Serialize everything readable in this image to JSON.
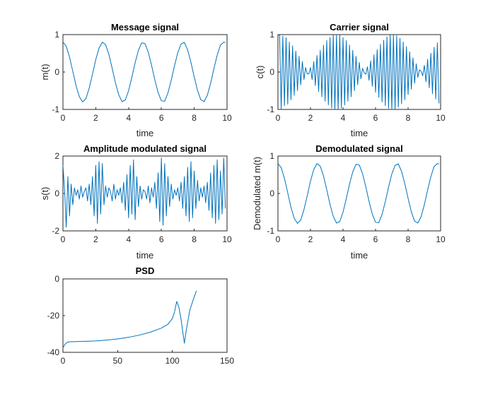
{
  "colors": {
    "series": "#0072bd",
    "axes": "#262626"
  },
  "chart_data": [
    {
      "id": "message",
      "type": "line",
      "title": "Message signal",
      "xlabel": "time",
      "ylabel": "m(t)",
      "xlim": [
        0,
        10
      ],
      "ylim": [
        -1,
        1
      ],
      "xticks": [
        0,
        2,
        4,
        6,
        8,
        10
      ],
      "yticks": [
        -1,
        0,
        1
      ],
      "grid": false,
      "series": [
        {
          "x": [
            0,
            0.2,
            0.4,
            0.6,
            0.8,
            1.0,
            1.2,
            1.4,
            1.6,
            1.8,
            2.0,
            2.2,
            2.4,
            2.6,
            2.8,
            3.0,
            3.2,
            3.4,
            3.6,
            3.8,
            4.0,
            4.2,
            4.4,
            4.6,
            4.8,
            5.0,
            5.2,
            5.4,
            5.6,
            5.8,
            6.0,
            6.2,
            6.4,
            6.6,
            6.8,
            7.0,
            7.2,
            7.4,
            7.6,
            7.8,
            8.0,
            8.2,
            8.4,
            8.6,
            8.8,
            9.0,
            9.2,
            9.4,
            9.6,
            9.8,
            9.9
          ],
          "y": [
            0.8,
            0.69,
            0.4,
            0.02,
            -0.37,
            -0.66,
            -0.8,
            -0.71,
            -0.43,
            -0.06,
            0.33,
            0.64,
            0.8,
            0.73,
            0.47,
            0.1,
            -0.29,
            -0.61,
            -0.79,
            -0.75,
            -0.5,
            -0.14,
            0.25,
            0.58,
            0.78,
            0.76,
            0.53,
            0.18,
            -0.21,
            -0.55,
            -0.77,
            -0.78,
            -0.56,
            -0.22,
            0.17,
            0.52,
            0.75,
            0.79,
            0.59,
            0.26,
            -0.13,
            -0.49,
            -0.74,
            -0.79,
            -0.62,
            -0.3,
            0.09,
            0.45,
            0.72,
            0.8,
            0.79
          ]
        }
      ]
    },
    {
      "id": "carrier",
      "type": "line",
      "title": "Carrier signal",
      "xlabel": "time",
      "ylabel": "c(t)",
      "xlim": [
        0,
        10
      ],
      "ylim": [
        -1,
        1
      ],
      "xticks": [
        0,
        2,
        4,
        6,
        8,
        10
      ],
      "yticks": [
        -1,
        0,
        1
      ],
      "grid": false,
      "series": [
        {
          "x": [
            0,
            0.1,
            0.2,
            0.3,
            0.4,
            0.5,
            0.6,
            0.7,
            0.8,
            0.9,
            1.0,
            1.1,
            1.2,
            1.3,
            1.4,
            1.5,
            1.6,
            1.7,
            1.8,
            1.9,
            2.0,
            2.1,
            2.2,
            2.3,
            2.4,
            2.5,
            2.6,
            2.7,
            2.8,
            2.9,
            3.0,
            3.1,
            3.2,
            3.3,
            3.4,
            3.5,
            3.6,
            3.7,
            3.8,
            3.9,
            4.0,
            4.1,
            4.2,
            4.3,
            4.4,
            4.5,
            4.6,
            4.7,
            4.8,
            4.9,
            5.0,
            5.1,
            5.2,
            5.3,
            5.4,
            5.5,
            5.6,
            5.7,
            5.8,
            5.9,
            6.0,
            6.1,
            6.2,
            6.3,
            6.4,
            6.5,
            6.6,
            6.7,
            6.8,
            6.9,
            7.0,
            7.1,
            7.2,
            7.3,
            7.4,
            7.5,
            7.6,
            7.7,
            7.8,
            7.9,
            8.0,
            8.1,
            8.2,
            8.3,
            8.4,
            8.5,
            8.6,
            8.7,
            8.8,
            8.9,
            9.0,
            9.1,
            9.2,
            9.3,
            9.4,
            9.5,
            9.6,
            9.7,
            9.8,
            9.9
          ],
          "y": [
            1.0,
            0.98,
            -1.0,
            0.96,
            -0.9,
            0.92,
            -0.86,
            0.8,
            -0.74,
            0.7,
            -0.62,
            0.56,
            -0.5,
            0.42,
            -0.34,
            0.28,
            -0.2,
            0.12,
            -0.05,
            -0.05,
            0.12,
            -0.2,
            0.28,
            -0.36,
            0.44,
            -0.52,
            0.58,
            -0.66,
            0.72,
            -0.78,
            0.84,
            -0.88,
            0.92,
            -0.96,
            0.98,
            -1.0,
            1.0,
            -1.0,
            0.98,
            -0.96,
            0.92,
            -0.88,
            0.84,
            -0.78,
            0.72,
            -0.66,
            0.58,
            -0.5,
            0.42,
            -0.34,
            0.26,
            -0.18,
            0.1,
            -0.02,
            -0.06,
            0.14,
            -0.22,
            0.3,
            -0.38,
            0.46,
            -0.54,
            0.6,
            -0.68,
            0.74,
            -0.8,
            0.85,
            -0.9,
            0.94,
            -0.97,
            0.99,
            -1.0,
            1.0,
            -0.99,
            0.97,
            -0.94,
            0.9,
            -0.85,
            0.8,
            -0.74,
            0.68,
            -0.6,
            0.54,
            -0.46,
            0.38,
            -0.3,
            0.22,
            -0.14,
            0.06,
            0.02,
            -0.1,
            0.18,
            -0.26,
            0.34,
            -0.42,
            0.5,
            -0.58,
            0.66,
            -0.72,
            0.78,
            -0.84
          ]
        }
      ]
    },
    {
      "id": "am",
      "type": "line",
      "title": "Amplitude modulated signal",
      "xlabel": "time",
      "ylabel": "s(t)",
      "xlim": [
        0,
        10
      ],
      "ylim": [
        -2,
        2
      ],
      "xticks": [
        0,
        2,
        4,
        6,
        8,
        10
      ],
      "yticks": [
        -2,
        0,
        2
      ],
      "grid": false,
      "series": [
        {
          "x": [
            0,
            0.1,
            0.2,
            0.3,
            0.4,
            0.5,
            0.6,
            0.7,
            0.8,
            0.9,
            1.0,
            1.1,
            1.2,
            1.3,
            1.4,
            1.5,
            1.6,
            1.7,
            1.8,
            1.9,
            2.0,
            2.1,
            2.2,
            2.3,
            2.4,
            2.5,
            2.6,
            2.7,
            2.8,
            2.9,
            3.0,
            3.1,
            3.2,
            3.3,
            3.4,
            3.5,
            3.6,
            3.7,
            3.8,
            3.9,
            4.0,
            4.1,
            4.2,
            4.3,
            4.4,
            4.5,
            4.6,
            4.7,
            4.8,
            4.9,
            5.0,
            5.1,
            5.2,
            5.3,
            5.4,
            5.5,
            5.6,
            5.7,
            5.8,
            5.9,
            6.0,
            6.1,
            6.2,
            6.3,
            6.4,
            6.5,
            6.6,
            6.7,
            6.8,
            6.9,
            7.0,
            7.1,
            7.2,
            7.3,
            7.4,
            7.5,
            7.6,
            7.7,
            7.8,
            7.9,
            8.0,
            8.1,
            8.2,
            8.3,
            8.4,
            8.5,
            8.6,
            8.7,
            8.8,
            8.9,
            9.0,
            9.1,
            9.2,
            9.3,
            9.4,
            9.5,
            9.6,
            9.7,
            9.8,
            9.9
          ],
          "y": [
            1.5,
            0.2,
            -1.8,
            0.9,
            -1.2,
            0.5,
            -0.6,
            0.3,
            -0.1,
            0.2,
            -0.3,
            0.4,
            -0.2,
            0.1,
            0.3,
            -0.4,
            0.5,
            -0.6,
            0.9,
            -1.2,
            1.5,
            -1.6,
            1.7,
            -1.1,
            1.6,
            -0.6,
            0.4,
            -0.2,
            0.3,
            0.1,
            -0.4,
            0.5,
            -0.3,
            0.2,
            -0.1,
            0.3,
            -0.5,
            0.6,
            -0.9,
            1.0,
            -1.3,
            1.5,
            -1.1,
            1.8,
            -1.4,
            0.9,
            -0.7,
            0.4,
            -0.3,
            0.2,
            0.1,
            -0.3,
            0.4,
            -0.5,
            0.3,
            -0.2,
            0.6,
            -0.8,
            1.1,
            -1.5,
            1.9,
            -1.7,
            1.6,
            -1.2,
            0.9,
            -0.7,
            0.5,
            -0.3,
            0.2,
            -0.1,
            0.3,
            -0.4,
            0.6,
            -0.8,
            0.9,
            -1.2,
            1.4,
            -1.5,
            1.7,
            -1.3,
            1.2,
            -0.8,
            0.7,
            -0.4,
            0.3,
            -0.2,
            0.4,
            -0.5,
            0.6,
            -0.9,
            1.1,
            -1.3,
            1.5,
            -1.6,
            1.8,
            -1.4,
            1.2,
            -1.1,
            1.9,
            -0.8
          ]
        }
      ]
    },
    {
      "id": "demod",
      "type": "line",
      "title": "Demodulated signal",
      "xlabel": "time",
      "ylabel": "Demodulated m(t)",
      "xlim": [
        0,
        10
      ],
      "ylim": [
        -1,
        1
      ],
      "xticks": [
        0,
        2,
        4,
        6,
        8,
        10
      ],
      "yticks": [
        -1,
        0,
        1
      ],
      "grid": false,
      "series": [
        {
          "x": [
            0,
            0.2,
            0.4,
            0.6,
            0.8,
            1.0,
            1.2,
            1.4,
            1.6,
            1.8,
            2.0,
            2.2,
            2.4,
            2.6,
            2.8,
            3.0,
            3.2,
            3.4,
            3.6,
            3.8,
            4.0,
            4.2,
            4.4,
            4.6,
            4.8,
            5.0,
            5.2,
            5.4,
            5.6,
            5.8,
            6.0,
            6.2,
            6.4,
            6.6,
            6.8,
            7.0,
            7.2,
            7.4,
            7.6,
            7.8,
            8.0,
            8.2,
            8.4,
            8.6,
            8.8,
            9.0,
            9.2,
            9.4,
            9.6,
            9.8,
            9.9
          ],
          "y": [
            0.8,
            0.69,
            0.4,
            0.02,
            -0.37,
            -0.66,
            -0.8,
            -0.71,
            -0.43,
            -0.06,
            0.33,
            0.64,
            0.8,
            0.73,
            0.47,
            0.1,
            -0.29,
            -0.61,
            -0.79,
            -0.75,
            -0.5,
            -0.14,
            0.25,
            0.58,
            0.78,
            0.76,
            0.53,
            0.18,
            -0.21,
            -0.55,
            -0.77,
            -0.78,
            -0.56,
            -0.22,
            0.17,
            0.52,
            0.75,
            0.79,
            0.59,
            0.26,
            -0.13,
            -0.49,
            -0.74,
            -0.79,
            -0.62,
            -0.3,
            0.09,
            0.45,
            0.72,
            0.8,
            0.79
          ]
        }
      ]
    },
    {
      "id": "psd",
      "type": "line",
      "title": "PSD",
      "xlabel": "",
      "ylabel": "",
      "xlim": [
        0,
        150
      ],
      "ylim": [
        -40,
        0
      ],
      "xticks": [
        0,
        50,
        100,
        150
      ],
      "yticks": [
        -40,
        -20,
        0
      ],
      "grid": false,
      "series": [
        {
          "x": [
            0,
            2,
            4,
            6,
            10,
            20,
            30,
            40,
            50,
            60,
            70,
            80,
            90,
            96,
            100,
            102,
            104,
            106,
            108,
            110,
            111,
            113,
            116,
            119,
            122
          ],
          "y": [
            -37.5,
            -35.5,
            -34.5,
            -34.3,
            -34.2,
            -34.0,
            -33.8,
            -33.3,
            -32.7,
            -31.8,
            -30.6,
            -29.0,
            -26.8,
            -24.7,
            -21.6,
            -18.0,
            -12.3,
            -15.5,
            -22.0,
            -31.0,
            -35.0,
            -27.0,
            -17.0,
            -11.5,
            -6.5
          ]
        }
      ]
    }
  ]
}
